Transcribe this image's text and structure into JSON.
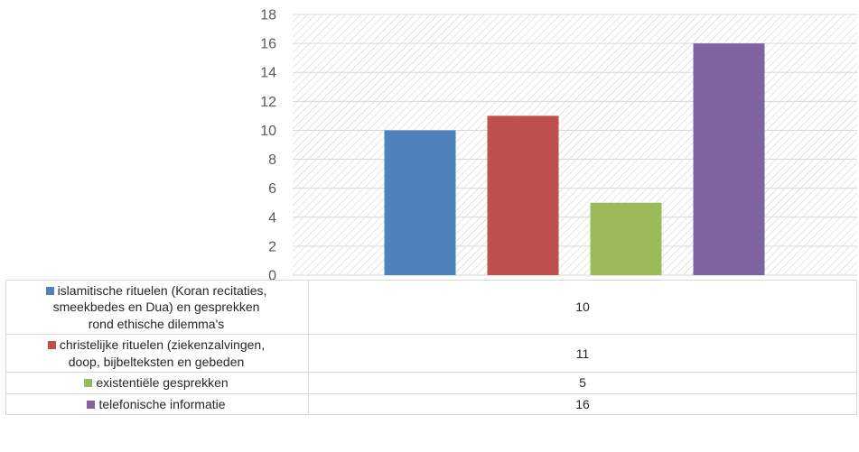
{
  "chart_data": {
    "type": "bar",
    "series": [
      {
        "name_lines": [
          "islamitische rituelen (Koran recitaties,",
          "smeekbedes en Dua) en gesprekken",
          "rond ethische dilemma's"
        ],
        "value": 10,
        "color": "#4f81bd"
      },
      {
        "name_lines": [
          "christelijke rituelen (ziekenzalvingen,",
          "doop, bijbelteksten en gebeden"
        ],
        "value": 11,
        "color": "#c0504d"
      },
      {
        "name_lines": [
          "existentiële gesprekken"
        ],
        "value": 5,
        "color": "#9bbb59"
      },
      {
        "name_lines": [
          "telefonische informatie"
        ],
        "value": 16,
        "color": "#8064a2"
      }
    ],
    "ylim": [
      0,
      18
    ],
    "yticks": [
      0,
      2,
      4,
      6,
      8,
      10,
      12,
      14,
      16,
      18
    ],
    "grid": true,
    "legend": "data-table"
  }
}
